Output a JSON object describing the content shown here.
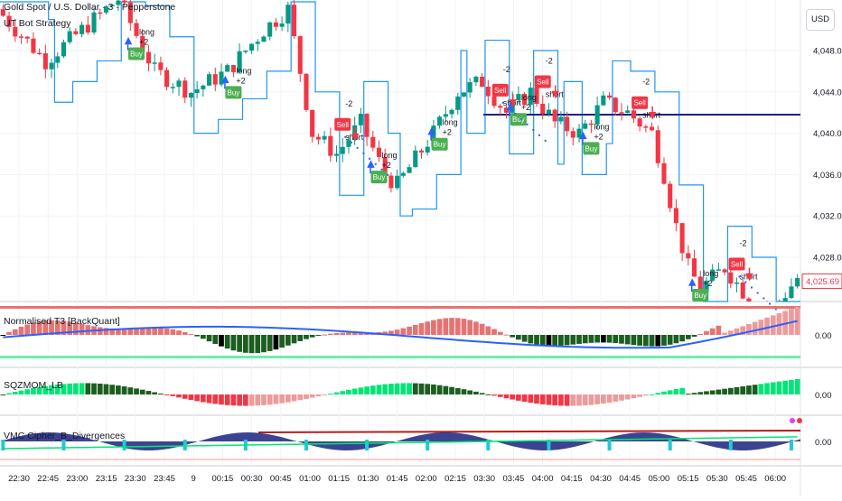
{
  "header": {
    "symbol_title": "Gold Spot / U.S. Dollar · 3 · Pepperstone",
    "strategy_name": "UT Bot Strategy",
    "currency": "USD"
  },
  "price_axis": {
    "labels": [
      "4,048.00",
      "4,044.00",
      "4,040.00",
      "4,036.00",
      "4,032.00",
      "4,028.00"
    ],
    "current_price": "4,025.69",
    "hline_price": 4041.8
  },
  "panes": [
    {
      "title": "Normalised T3 [BackQuant]",
      "axis_label": "0.00"
    },
    {
      "title": "SQZMOM_LB",
      "axis_label": "0.00"
    },
    {
      "title": "VMC Cipher_B_Divergences",
      "axis_label": "0.00"
    }
  ],
  "time_axis": {
    "labels": [
      "22:30",
      "22:45",
      "23:00",
      "23:15",
      "23:30",
      "23:45",
      "9",
      "00:15",
      "00:30",
      "00:45",
      "01:00",
      "01:15",
      "01:30",
      "01:45",
      "02:00",
      "02:15",
      "03:30",
      "03:45",
      "04:00",
      "04:15",
      "04:30",
      "04:45",
      "05:00",
      "05:15",
      "05:30",
      "05:45",
      "06:00"
    ]
  },
  "signals": [
    {
      "type": "Buy",
      "tag": "long",
      "qty": "+2",
      "bar": 22
    },
    {
      "type": "Buy",
      "tag": "long",
      "qty": "+2",
      "bar": 38
    },
    {
      "type": "Sell",
      "tag": "short",
      "qty": "-2",
      "bar": 56
    },
    {
      "type": "Buy",
      "tag": "long",
      "qty": "+2",
      "bar": 62
    },
    {
      "type": "Buy",
      "tag": "long",
      "qty": "+2",
      "bar": 72
    },
    {
      "type": "Sell",
      "tag": "short",
      "qty": "-2",
      "bar": 82
    },
    {
      "type": "Sell",
      "tag": "short",
      "qty": "-2",
      "bar": 89
    },
    {
      "type": "Buy",
      "tag": "long",
      "qty": "+2",
      "bar": 85
    },
    {
      "type": "Buy",
      "tag": "long",
      "qty": "+2",
      "bar": 97
    },
    {
      "type": "Sell",
      "tag": "short",
      "qty": "-2",
      "bar": 105
    },
    {
      "type": "Sell",
      "tag": "short",
      "qty": "-2",
      "bar": 121
    },
    {
      "type": "Buy",
      "tag": "long",
      "qty": "+2",
      "bar": 115
    }
  ],
  "colors": {
    "up": "#089981",
    "down": "#f23645",
    "trail": "#2196f3",
    "buy_label": "#4caf50",
    "sell_label": "#f23645",
    "hline": "#1a237e",
    "t3_line": "#2962ff"
  }
}
